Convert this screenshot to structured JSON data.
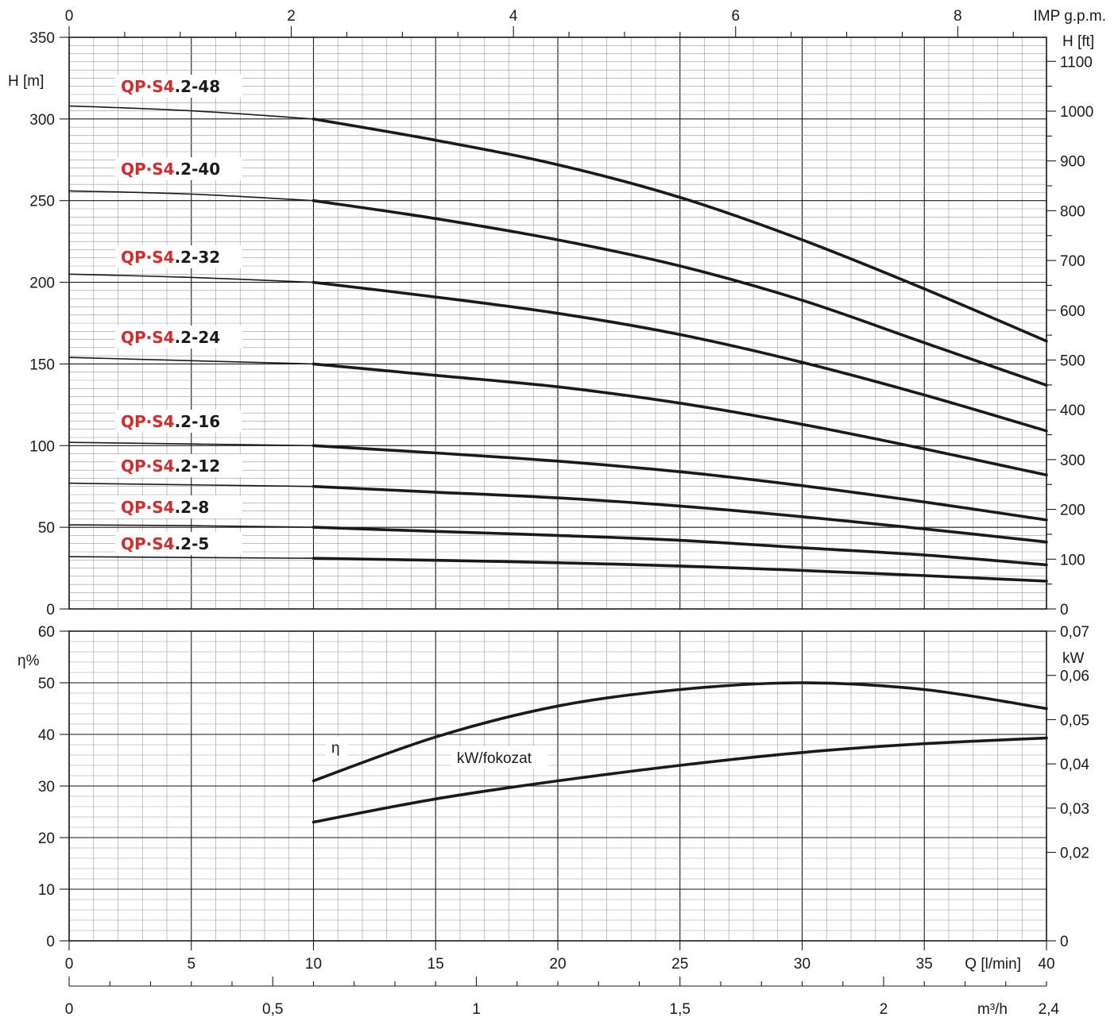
{
  "chart_data": [
    {
      "type": "line",
      "name_label_parts": {
        "red": "QP·S4",
        "black_suffix_prefix": "."
      },
      "x_axis_primary": {
        "label": "Q [l/min]",
        "range": [
          0,
          40
        ],
        "ticks": [
          "0",
          "5",
          "10",
          "15",
          "20",
          "25",
          "30",
          "35",
          "40"
        ]
      },
      "x_axis_m3h": {
        "label": "m³/h",
        "range": [
          0,
          2.4
        ],
        "ticks": [
          {
            "v": 0,
            "t": "0"
          },
          {
            "v": 0.5,
            "t": "0,5"
          },
          {
            "v": 1,
            "t": "1"
          },
          {
            "v": 1.5,
            "t": "1,5"
          },
          {
            "v": 2,
            "t": "2"
          },
          {
            "v": 2.4,
            "t": "2,4"
          }
        ]
      },
      "x_axis_top": {
        "label": "IMP g.p.m.",
        "range": [
          0,
          8.8
        ],
        "ticks": [
          "0",
          "2",
          "4",
          "6",
          "8"
        ]
      },
      "y_axis_left": {
        "label": "H [m]",
        "range": [
          0,
          350
        ],
        "ticks": [
          "0",
          "50",
          "100",
          "150",
          "200",
          "250",
          "300",
          "350"
        ]
      },
      "y_axis_right": {
        "label": "H [ft]",
        "ticks": [
          "0",
          "100",
          "200",
          "300",
          "400",
          "500",
          "600",
          "700",
          "800",
          "900",
          "1000",
          "1100"
        ]
      },
      "grid": true,
      "series": [
        {
          "name": "2-48",
          "x": [
            0,
            5,
            10,
            15,
            20,
            25,
            30,
            35,
            40
          ],
          "y": [
            308,
            305,
            300,
            287,
            272,
            252,
            226,
            196,
            164
          ]
        },
        {
          "name": "2-40",
          "x": [
            0,
            5,
            10,
            15,
            20,
            25,
            30,
            35,
            40
          ],
          "y": [
            256,
            254,
            250,
            239,
            226,
            210,
            189,
            163,
            137
          ]
        },
        {
          "name": "2-32",
          "x": [
            0,
            5,
            10,
            15,
            20,
            25,
            30,
            35,
            40
          ],
          "y": [
            205,
            203,
            200,
            191,
            181,
            168,
            151,
            131,
            109
          ]
        },
        {
          "name": "2-24",
          "x": [
            0,
            5,
            10,
            15,
            20,
            25,
            30,
            35,
            40
          ],
          "y": [
            154,
            152,
            150,
            143,
            136,
            126,
            113,
            98,
            82
          ]
        },
        {
          "name": "2-16",
          "x": [
            0,
            5,
            10,
            15,
            20,
            25,
            30,
            35,
            40
          ],
          "y": [
            102,
            101,
            100,
            95.5,
            90.5,
            84,
            75.5,
            65.5,
            54.5
          ]
        },
        {
          "name": "2-12",
          "x": [
            0,
            5,
            10,
            15,
            20,
            25,
            30,
            35,
            40
          ],
          "y": [
            77,
            76,
            75,
            71.5,
            68,
            63,
            56.5,
            49,
            41
          ]
        },
        {
          "name": "2-8",
          "x": [
            0,
            5,
            10,
            15,
            20,
            25,
            30,
            35,
            40
          ],
          "y": [
            51.5,
            51,
            50,
            47.5,
            45,
            42,
            37.5,
            33,
            27
          ]
        },
        {
          "name": "2-5",
          "x": [
            0,
            5,
            10,
            15,
            20,
            25,
            30,
            35,
            40
          ],
          "y": [
            32,
            31.5,
            31,
            29.8,
            28.3,
            26.3,
            23.6,
            20.4,
            17
          ]
        }
      ]
    },
    {
      "type": "line",
      "x_axis": {
        "label": "Q [l/min]",
        "range": [
          0,
          40
        ]
      },
      "y_axis_left": {
        "label": "η%",
        "range": [
          0,
          60
        ],
        "ticks": [
          "0",
          "10",
          "20",
          "30",
          "40",
          "50",
          "60"
        ]
      },
      "y_axis_right": {
        "label": "kW",
        "range": [
          0,
          0.07
        ],
        "ticks": [
          "0",
          "0,02",
          "0,03",
          "0,04",
          "0,05",
          "0,06",
          "0,07"
        ]
      },
      "grid": true,
      "series": [
        {
          "name": "η",
          "axis": "left",
          "x": [
            10,
            15,
            20,
            25,
            30,
            35,
            40
          ],
          "y": [
            31,
            39.5,
            45.5,
            48.7,
            50,
            48.7,
            45
          ]
        },
        {
          "name": "kW/fokozat",
          "axis": "left",
          "x": [
            10,
            15,
            20,
            25,
            30,
            35,
            40
          ],
          "y": [
            23,
            27.5,
            31,
            34,
            36.5,
            38.2,
            39.3
          ]
        }
      ]
    }
  ]
}
